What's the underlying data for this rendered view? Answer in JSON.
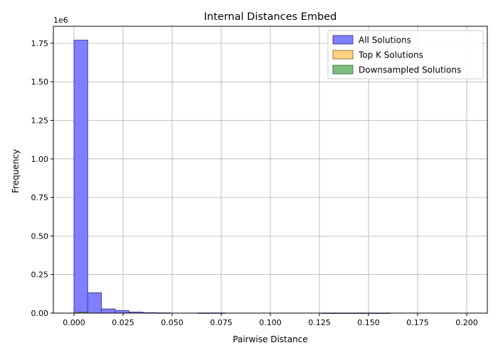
{
  "chart_data": {
    "type": "bar",
    "title": "Internal Distances Embed",
    "xlabel": "Pairwise Distance",
    "ylabel": "Frequency",
    "y_multiplier_label": "1e6",
    "xlim": [
      -0.0105,
      0.2105
    ],
    "ylim": [
      0,
      1860000
    ],
    "grid": true,
    "legend_position": "top-right",
    "x_ticks": [
      {
        "value": 0.0,
        "label": "0.000"
      },
      {
        "value": 0.025,
        "label": "0.025"
      },
      {
        "value": 0.05,
        "label": "0.050"
      },
      {
        "value": 0.075,
        "label": "0.075"
      },
      {
        "value": 0.1,
        "label": "0.100"
      },
      {
        "value": 0.125,
        "label": "0.125"
      },
      {
        "value": 0.15,
        "label": "0.150"
      },
      {
        "value": 0.175,
        "label": "0.175"
      },
      {
        "value": 0.2,
        "label": "0.200"
      }
    ],
    "y_ticks": [
      {
        "value": 0,
        "label": "0.00"
      },
      {
        "value": 250000,
        "label": "0.25"
      },
      {
        "value": 500000,
        "label": "0.50"
      },
      {
        "value": 750000,
        "label": "0.75"
      },
      {
        "value": 1000000,
        "label": "1.00"
      },
      {
        "value": 1250000,
        "label": "1.25"
      },
      {
        "value": 1500000,
        "label": "1.50"
      },
      {
        "value": 1750000,
        "label": "1.75"
      }
    ],
    "series": [
      {
        "name": "All Solutions",
        "color": "#7f7fff",
        "edge": "#3a3a8a",
        "bins": [
          {
            "x0": 0.0,
            "x1": 0.007,
            "value": 1770000
          },
          {
            "x0": 0.007,
            "x1": 0.014,
            "value": 132000
          },
          {
            "x0": 0.014,
            "x1": 0.021,
            "value": 27000
          },
          {
            "x0": 0.021,
            "x1": 0.028,
            "value": 17000
          },
          {
            "x0": 0.028,
            "x1": 0.035,
            "value": 7000
          },
          {
            "x0": 0.035,
            "x1": 0.042,
            "value": 2500
          },
          {
            "x0": 0.042,
            "x1": 0.049,
            "value": 1500
          },
          {
            "x0": 0.063,
            "x1": 0.07,
            "value": 1000
          },
          {
            "x0": 0.07,
            "x1": 0.077,
            "value": 1000
          },
          {
            "x0": 0.126,
            "x1": 0.133,
            "value": 500
          },
          {
            "x0": 0.133,
            "x1": 0.14,
            "value": 500
          },
          {
            "x0": 0.14,
            "x1": 0.147,
            "value": 500
          },
          {
            "x0": 0.147,
            "x1": 0.154,
            "value": 500
          },
          {
            "x0": 0.154,
            "x1": 0.161,
            "value": 500
          }
        ]
      },
      {
        "name": "Top K Solutions",
        "color": "#ffd080",
        "edge": "#8a6a2a",
        "bins": [
          {
            "x0": 0.0,
            "x1": 0.007,
            "value": 4000
          }
        ]
      },
      {
        "name": "Downsampled Solutions",
        "color": "#7fbf7f",
        "edge": "#3a6a3a",
        "bins": [
          {
            "x0": 0.0,
            "x1": 0.007,
            "value": 6000
          }
        ]
      }
    ]
  }
}
